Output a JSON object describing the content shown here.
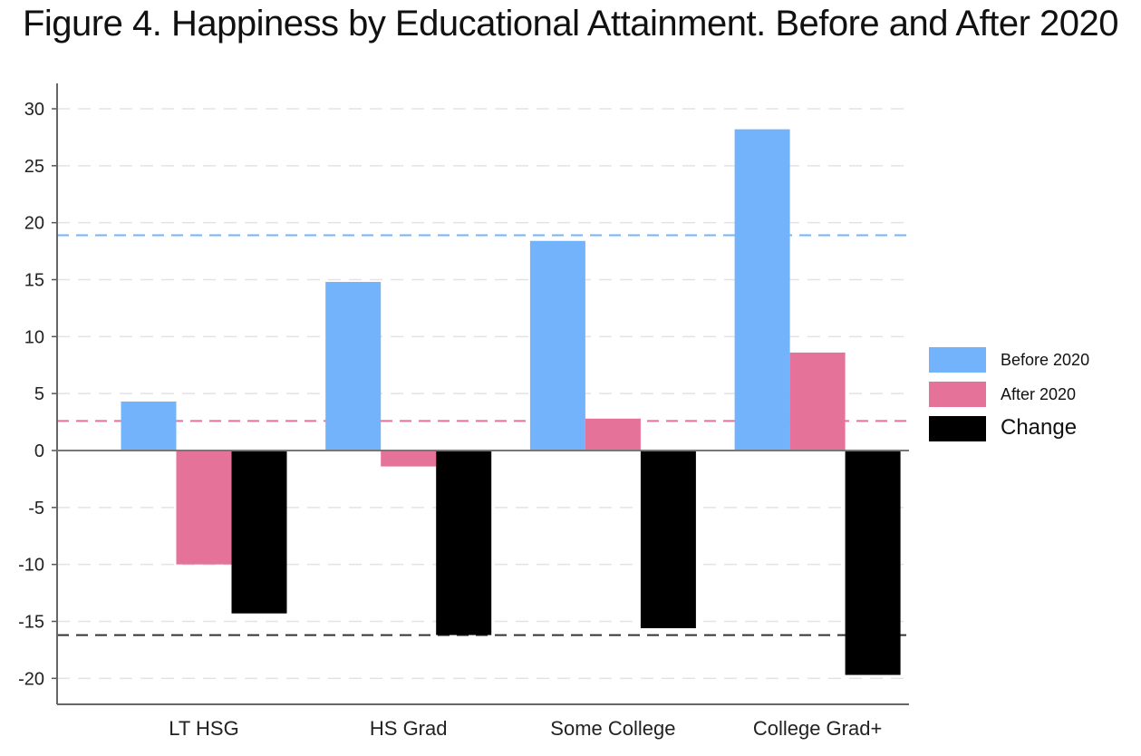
{
  "chart_data": {
    "type": "bar",
    "title": "Figure 4. Happiness by Educational Attainment.  Before and After 2020",
    "categories": [
      "LT HSG",
      "HS Grad",
      "Some College",
      "College Grad+"
    ],
    "series": [
      {
        "name": "Before 2020",
        "values": [
          4.3,
          14.8,
          18.4,
          28.2
        ],
        "color": "#73b3fb"
      },
      {
        "name": "After 2020",
        "values": [
          -10.0,
          -1.4,
          2.8,
          8.6
        ],
        "color": "#e57399"
      },
      {
        "name": "Change",
        "values": [
          -14.3,
          -16.2,
          -15.6,
          -19.7
        ],
        "color": "#000000"
      }
    ],
    "reference_lines": [
      {
        "series": "Before 2020",
        "value": 18.9,
        "color": "#73b3fb",
        "style": "dashed"
      },
      {
        "series": "After 2020",
        "value": 2.6,
        "color": "#e57399",
        "style": "dashed"
      },
      {
        "series": "Change",
        "value": -16.2,
        "color": "#333333",
        "style": "dashed"
      }
    ],
    "ylim": [
      -22,
      32
    ],
    "yticks": [
      30,
      25,
      20,
      15,
      10,
      5,
      0,
      -5,
      -10,
      -15,
      -20
    ],
    "xlabel": "",
    "ylabel": "",
    "grid": true,
    "legend_position": "right"
  }
}
